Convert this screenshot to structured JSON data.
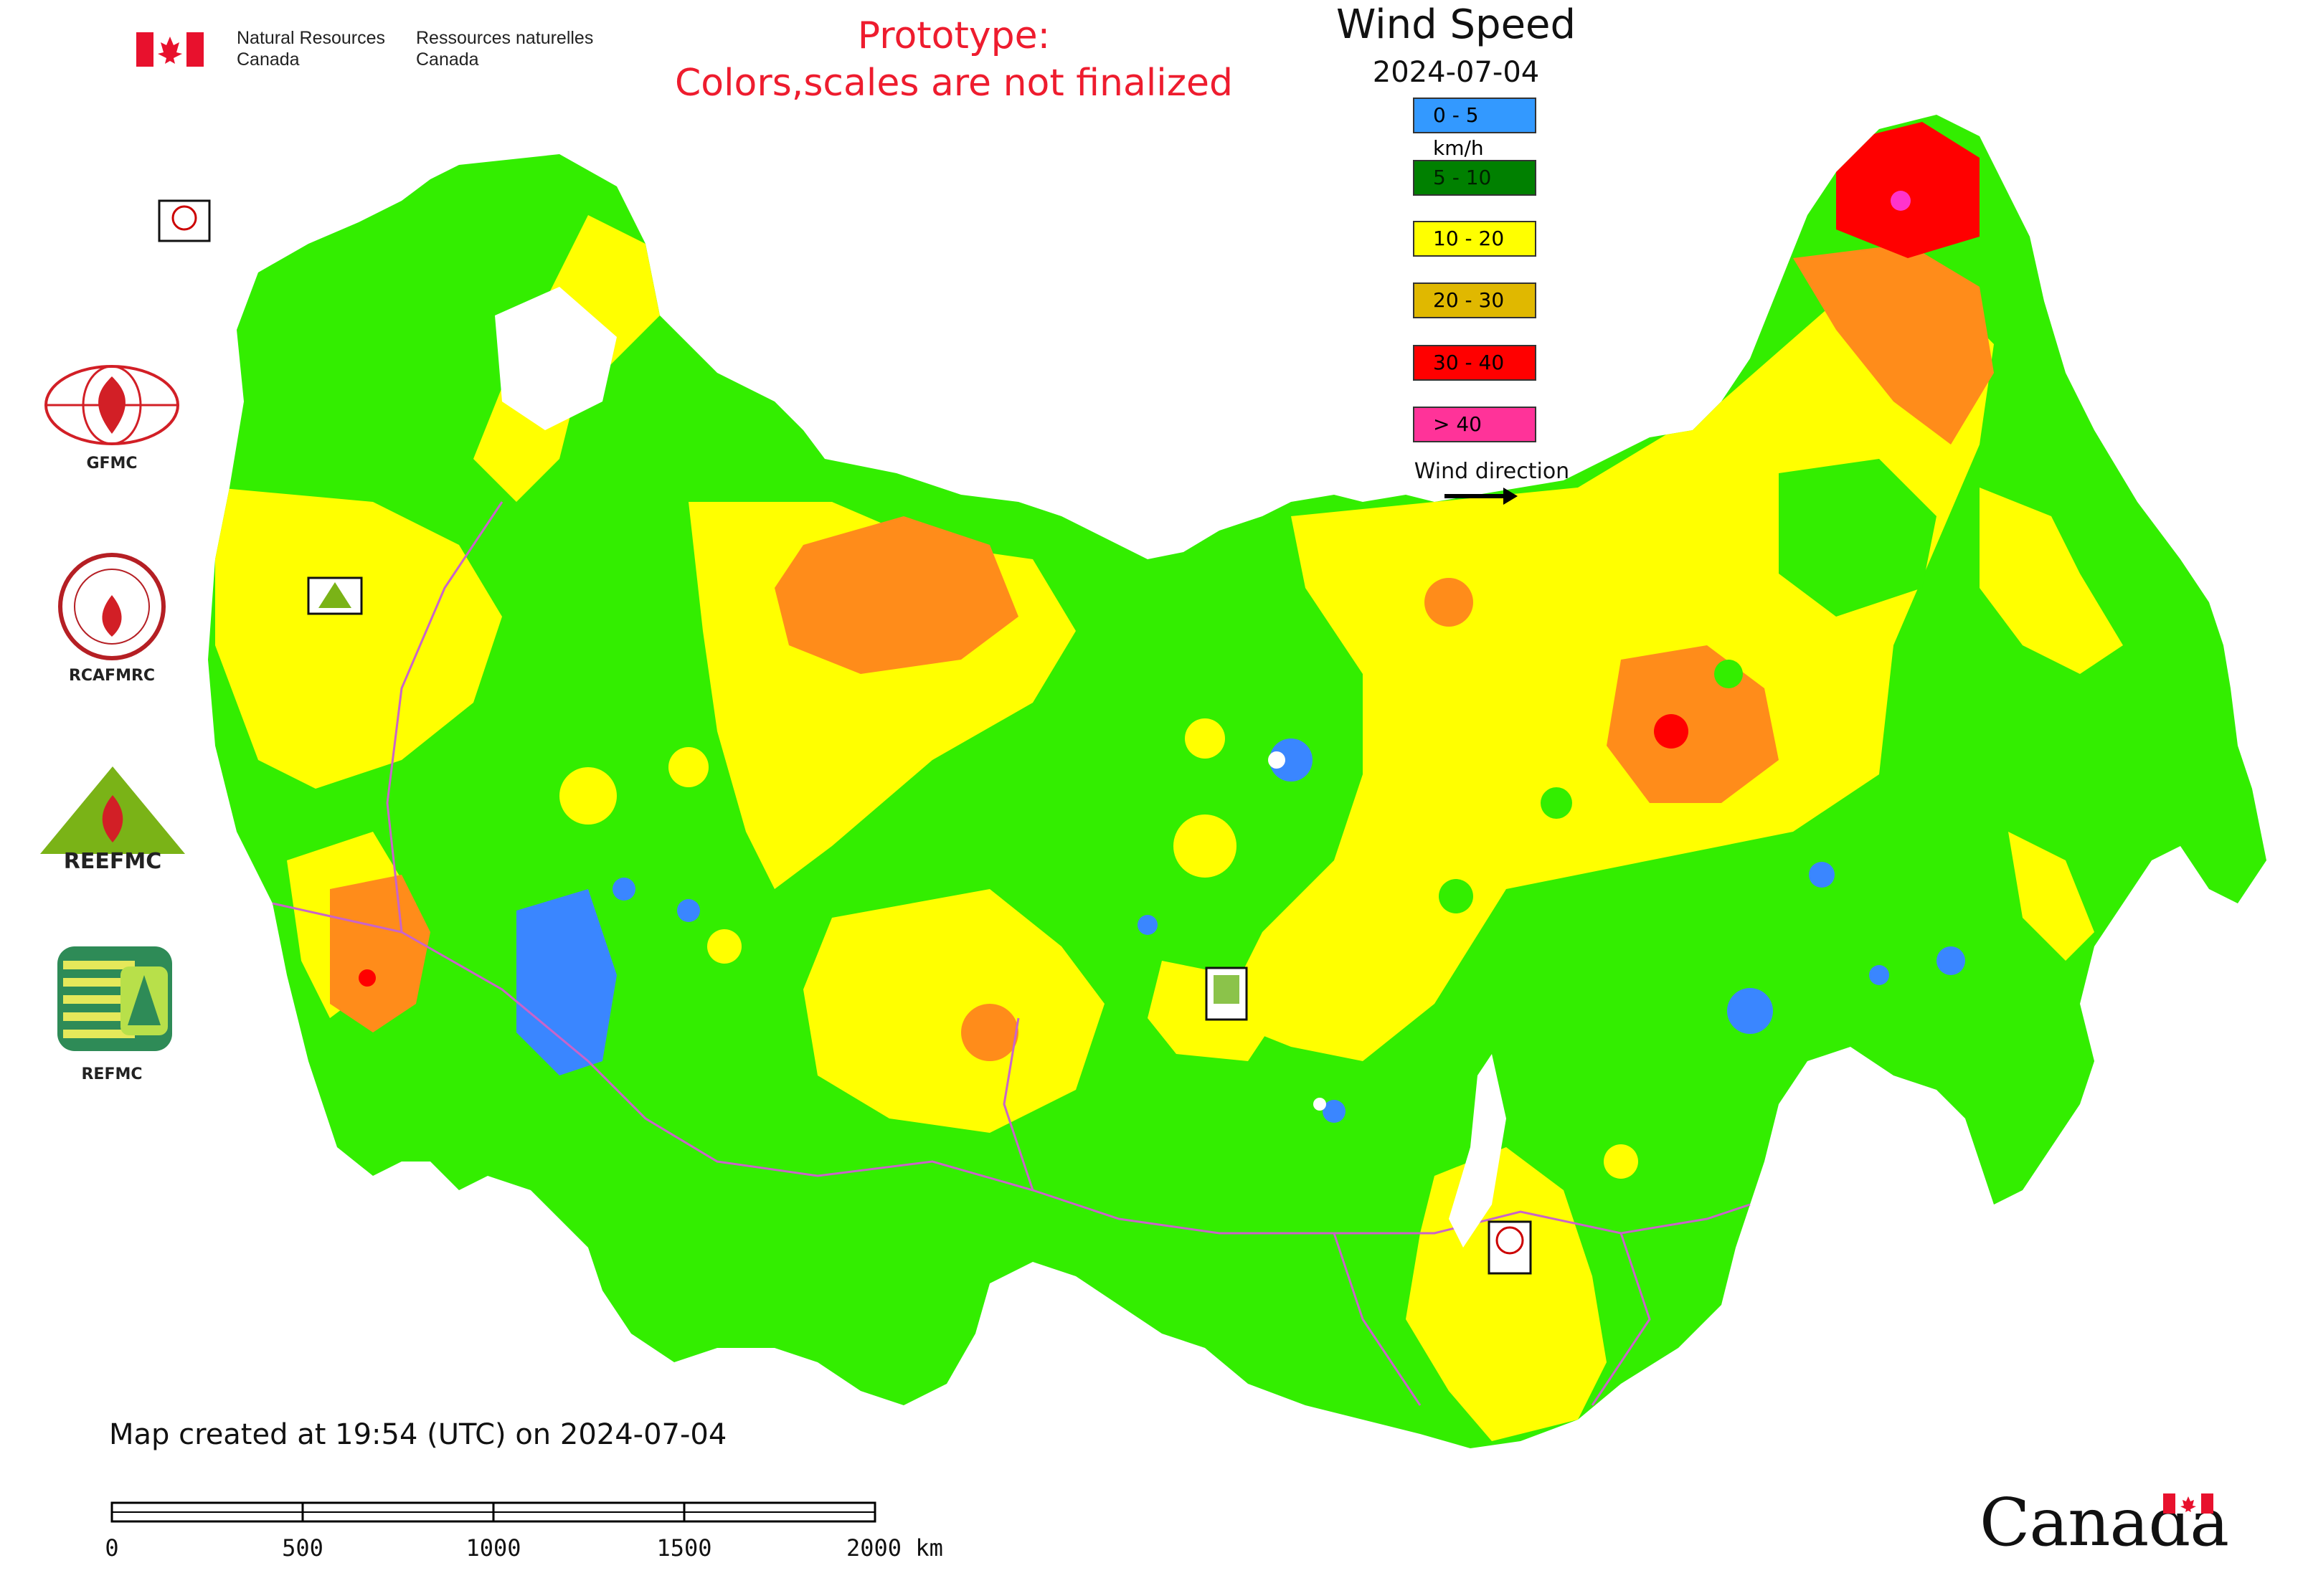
{
  "header": {
    "org_en_line1": "Natural Resources",
    "org_en_line2": "Canada",
    "org_fr_line1": "Ressources naturelles",
    "org_fr_line2": "Canada",
    "prototype_line1": "Prototype:",
    "prototype_line2": "Colors,scales are not finalized"
  },
  "legend": {
    "title": "Wind Speed",
    "date": "2024-07-04",
    "items": [
      {
        "label": "0 - 5 km/h",
        "color": "#3399ff"
      },
      {
        "label": "5 - 10",
        "color": "#008000"
      },
      {
        "label": "10 - 20",
        "color": "#ffff00"
      },
      {
        "label": "20 - 30",
        "color": "#e0b800"
      },
      {
        "label": "30 - 40",
        "color": "#ff0000"
      },
      {
        "label": "> 40",
        "color": "#ff3399"
      }
    ],
    "wind_direction_label": "Wind direction"
  },
  "logos": {
    "gfmc": "GFMC",
    "rcafmrc": "RCAFMRC",
    "reefmc": "REEFMC",
    "refmc": "REFMC"
  },
  "map": {
    "colors": {
      "low": "#3a86ff",
      "mid": "#33ee00",
      "yellow": "#ffff00",
      "orange": "#ff8c1a",
      "red": "#ff0000",
      "magenta": "#ff33cc",
      "boundary": "#c964c9"
    },
    "station_markers": [
      "GFMC",
      "REEFMC",
      "REFMC",
      "RCAFMRC"
    ]
  },
  "footer": {
    "map_created": "Map created at 19:54 (UTC) on 2024-07-04",
    "scale_labels": [
      "0",
      "500",
      "1000",
      "1500",
      "2000 km"
    ],
    "wordmark": "Canada"
  }
}
